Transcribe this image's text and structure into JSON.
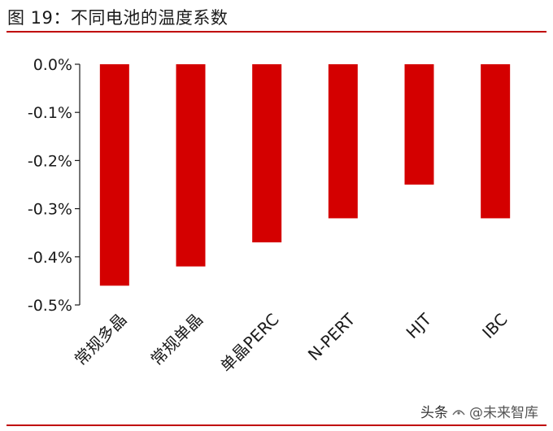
{
  "figure": {
    "title": "图 19：不同电池的温度系数"
  },
  "watermark": {
    "platform": "头条",
    "handle": "@未来智库"
  },
  "colors": {
    "bar": "#d40000",
    "rule": "#c00000",
    "axis": "#1a1a1a",
    "text": "#1a1a1a"
  },
  "chart_data": {
    "type": "bar",
    "title": "",
    "xlabel": "",
    "ylabel": "",
    "categories": [
      "常规多晶",
      "常规单晶",
      "单晶PERC",
      "N-PERT",
      "HJT",
      "IBC"
    ],
    "values": [
      -0.46,
      -0.42,
      -0.37,
      -0.32,
      -0.25,
      -0.32
    ],
    "unit": "%",
    "ylim": [
      -0.5,
      0.0
    ],
    "yticks": [
      0.0,
      -0.1,
      -0.2,
      -0.3,
      -0.4,
      -0.5
    ],
    "ytick_labels": [
      "0.0%",
      "-0.1%",
      "-0.2%",
      "-0.3%",
      "-0.4%",
      "-0.5%"
    ],
    "grid": false,
    "legend": "none"
  }
}
